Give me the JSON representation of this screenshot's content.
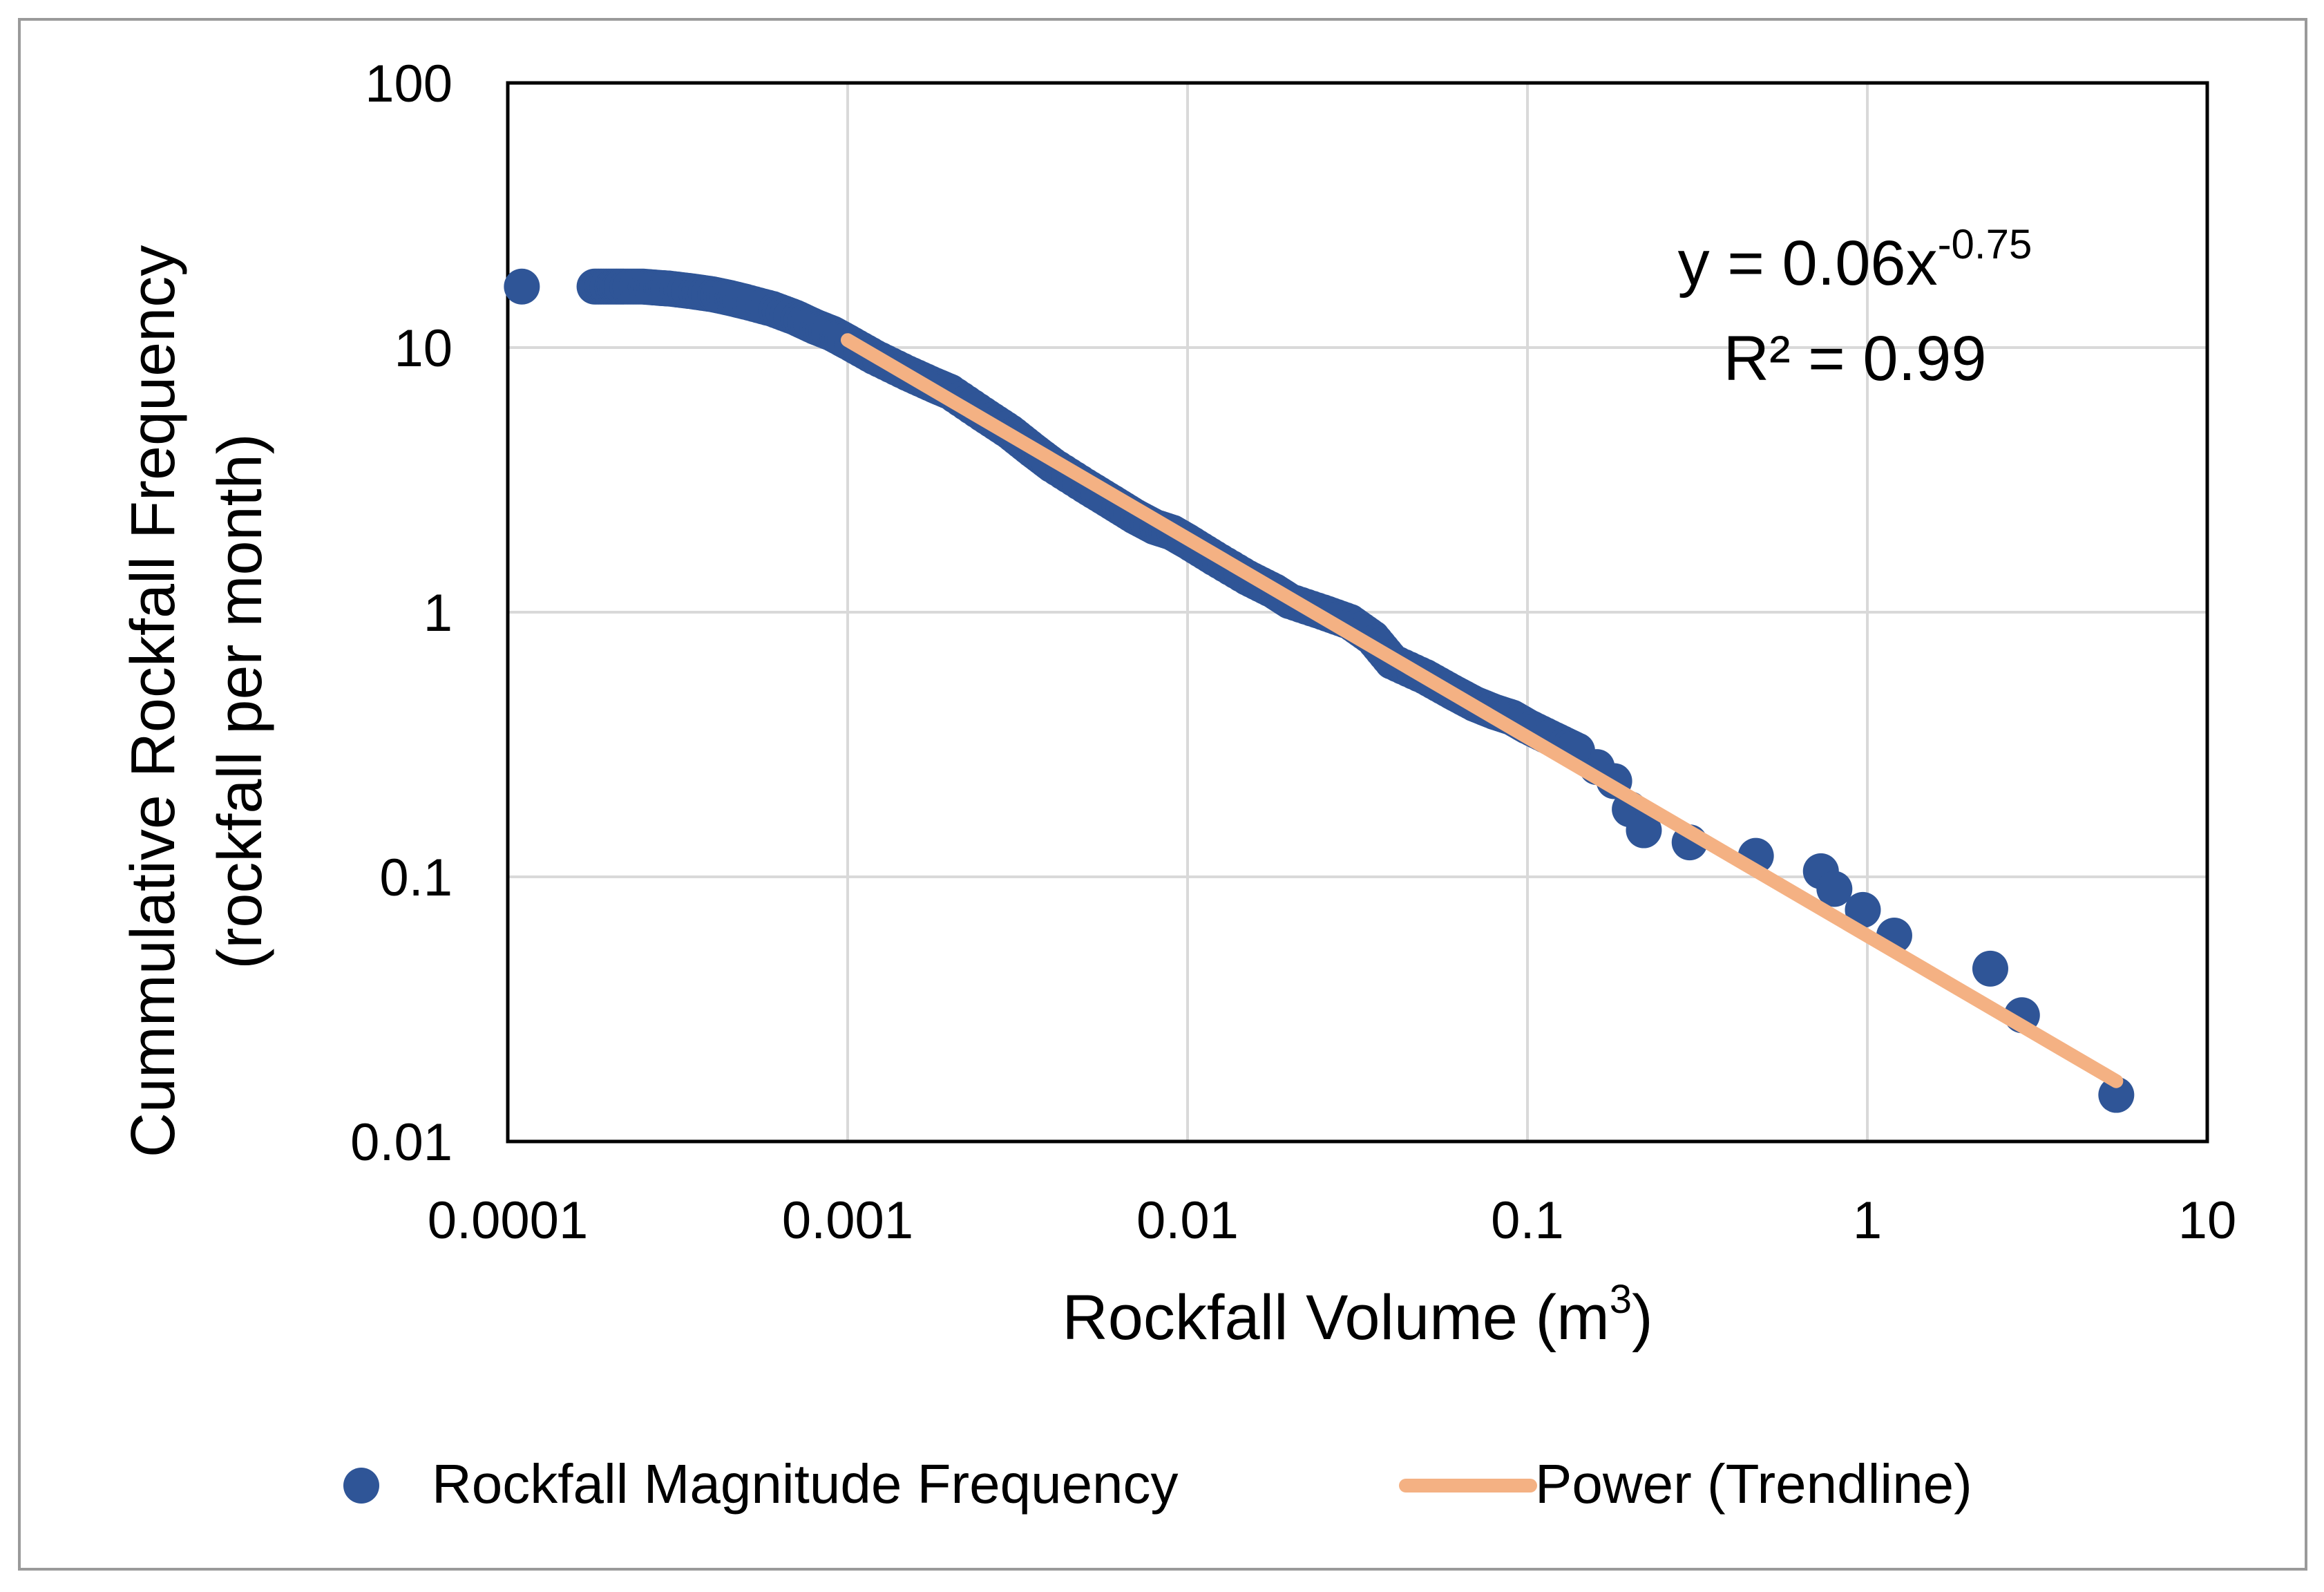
{
  "chart_data": {
    "type": "scatter",
    "title": "",
    "xlabel": "Rockfall Volume (m",
    "xlabel_sup": "3",
    "xlabel_close": ")",
    "ylabel_line1": "Cummulative Rockfall Frequency",
    "ylabel_line2": "(rockfall per month)",
    "xscale": "log",
    "yscale": "log",
    "xlim": [
      0.0001,
      10
    ],
    "ylim": [
      0.01,
      100
    ],
    "grid": true,
    "legend_position": "bottom",
    "x_ticks": [
      0.0001,
      0.001,
      0.01,
      0.1,
      1,
      10
    ],
    "x_tick_labels": [
      "0.0001",
      "0.001",
      "0.01",
      "0.1",
      "1",
      "10"
    ],
    "y_ticks": [
      0.01,
      0.1,
      1,
      10,
      100
    ],
    "y_tick_labels": [
      "0.01",
      "0.1",
      "1",
      "10",
      "100"
    ],
    "series": [
      {
        "name": "Rockfall Magnitude Frequency",
        "kind": "scatter",
        "color": "#2f5597",
        "x": [
          0.00011,
          0.00018,
          0.0002,
          0.00022,
          0.00025,
          0.00028,
          0.0003,
          0.00035,
          0.0004,
          0.00045,
          0.0005,
          0.0006,
          0.0007,
          0.0008,
          0.0009,
          0.001,
          0.0012,
          0.0015,
          0.0018,
          0.002,
          0.0025,
          0.003,
          0.0035,
          0.004,
          0.005,
          0.006,
          0.007,
          0.008,
          0.009,
          0.01,
          0.012,
          0.015,
          0.018,
          0.02,
          0.025,
          0.03,
          0.035,
          0.04,
          0.05,
          0.06,
          0.07,
          0.08,
          0.09,
          0.1,
          0.12,
          0.14,
          0.16,
          0.18,
          0.2,
          0.22,
          0.3,
          0.47,
          0.73,
          0.8,
          0.97,
          1.2,
          2.3,
          2.85,
          5.4
        ],
        "y": [
          17,
          17,
          17,
          17,
          17,
          16.8,
          16.7,
          16.3,
          15.9,
          15.4,
          14.9,
          14.0,
          13.0,
          12.0,
          11.3,
          10.5,
          9.2,
          8.0,
          7.2,
          6.8,
          5.6,
          4.8,
          4.1,
          3.6,
          3.0,
          2.6,
          2.3,
          2.1,
          2.0,
          1.85,
          1.6,
          1.35,
          1.2,
          1.1,
          1.0,
          0.92,
          0.8,
          0.65,
          0.57,
          0.5,
          0.45,
          0.42,
          0.4,
          0.37,
          0.33,
          0.3,
          0.26,
          0.23,
          0.18,
          0.15,
          0.135,
          0.12,
          0.105,
          0.09,
          0.075,
          0.06,
          0.045,
          0.03,
          0.015
        ]
      },
      {
        "name": "Power (Trendline)",
        "kind": "trendline",
        "color": "#f4b183",
        "x": [
          0.001,
          5.4
        ],
        "y": [
          10.67,
          0.0169
        ]
      }
    ],
    "annotation_equation_base": "y = 0.06x",
    "annotation_equation_exponent": "-0.75",
    "annotation_r2": "R² = 0.99",
    "legend_entries": [
      "Rockfall Magnitude Frequency",
      "Power (Trendline)"
    ]
  }
}
